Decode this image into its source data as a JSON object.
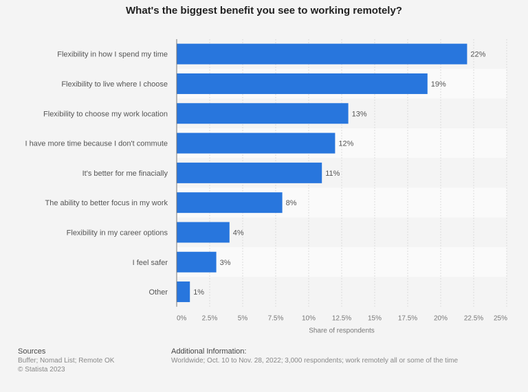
{
  "chart_data": {
    "type": "bar",
    "orientation": "horizontal",
    "title": "What's the biggest benefit you see to working remotely?",
    "xlabel": "Share of respondents",
    "categories": [
      "Flexibility in how I spend my time",
      "Flexibility to live where I choose",
      "Flexibility to choose my work location",
      "I have more time because I don't commute",
      "It's better for me finacially",
      "The ability to better focus in my work",
      "Flexibility in my career options",
      "I feel safer",
      "Other"
    ],
    "values": [
      22,
      19,
      13,
      12,
      11,
      8,
      4,
      3,
      1
    ],
    "data_labels": [
      "22%",
      "19%",
      "13%",
      "12%",
      "11%",
      "8%",
      "4%",
      "3%",
      "1%"
    ],
    "xlim": [
      0,
      25
    ],
    "ticks": [
      0,
      2.5,
      5,
      7.5,
      10,
      12.5,
      15,
      17.5,
      20,
      22.5,
      25
    ],
    "tick_labels": [
      "0%",
      "2.5%",
      "5%",
      "7.5%",
      "10%",
      "12.5%",
      "15%",
      "17.5%",
      "20%",
      "22.5%",
      "25%"
    ],
    "grid": true,
    "bar_color": "#2876dd"
  },
  "footer": {
    "sources_title": "Sources",
    "sources": "Buffer; Nomad List; Remote OK",
    "copyright": "© Statista 2023",
    "info_title": "Additional Information:",
    "info": "Worldwide; Oct. 10 to Nov. 28, 2022; 3,000 respondents; work remotely all or some of the time"
  }
}
